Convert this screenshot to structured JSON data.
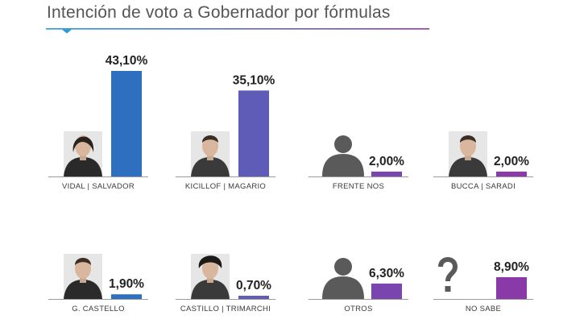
{
  "title": "Intención de voto a Gobernador por fórmulas",
  "colors": {
    "title": "#555555",
    "rule_start": "#2a9bd6",
    "rule_end": "#8e3aa5",
    "bar_blue": "#2f6fc0",
    "bar_indigo": "#5f5cb8",
    "bar_violet": "#8a3aa8",
    "baseline": "#9a9a9a",
    "silhouette": "#5a5a5a"
  },
  "chart_data": {
    "type": "bar",
    "ylim": [
      0,
      45
    ],
    "unit": "%",
    "categories": [
      "VIDAL | SALVADOR",
      "KICILLOF | MAGARIO",
      "FRENTE NOS",
      "BUCCA | SARADI",
      "G. CASTELLO",
      "CASTILLO | TRIMARCHI",
      "OTROS",
      "NO SABE"
    ],
    "values": [
      43.1,
      35.1,
      2.0,
      2.0,
      1.9,
      0.7,
      6.3,
      8.9
    ],
    "value_labels": [
      "43,10%",
      "35,10%",
      "2,00%",
      "2,00%",
      "1,90%",
      "0,70%",
      "6,30%",
      "8,90%"
    ],
    "bar_colors": [
      "#2f6fc0",
      "#5f5cb8",
      "#7b45b0",
      "#8a3aa8",
      "#2f6fc0",
      "#5f5cb8",
      "#7b45b0",
      "#8a3aa8"
    ],
    "images": [
      "photo-vidal",
      "photo-kicillof",
      "person-silhouette-icon",
      "photo-bucca",
      "photo-castello",
      "photo-castillo",
      "person-silhouette-icon",
      "question-mark-icon"
    ],
    "grid": false,
    "legend": "none"
  }
}
